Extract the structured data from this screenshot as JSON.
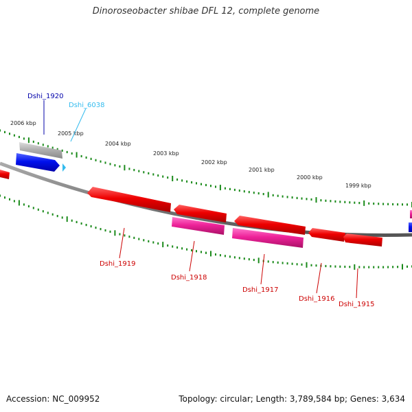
{
  "header": {
    "title": "Dinoroseobacter shibae DFL 12, complete genome"
  },
  "footer": {
    "accession": "Accession: NC_009952",
    "info": "Topology: circular; Length: 3,789,584 bp; Genes: 3,634"
  },
  "scale_labels": [
    "2006 kbp",
    "2005 kbp",
    "2004 kbp",
    "2003 kbp",
    "2002 kbp",
    "2001 kbp",
    "2000 kbp",
    "1999 kbp"
  ],
  "genes": [
    {
      "label": "Dshi_1920",
      "color": "#0000aa"
    },
    {
      "label": "Dshi_6038",
      "color": "#33bbee"
    },
    {
      "label": "Dshi_1919",
      "color": "#cc0000"
    },
    {
      "label": "Dshi_1918",
      "color": "#cc0000"
    },
    {
      "label": "Dshi_1917",
      "color": "#cc0000"
    },
    {
      "label": "Dshi_1916",
      "color": "#cc0000"
    },
    {
      "label": "Dshi_1915",
      "color": "#cc0000"
    }
  ],
  "colors": {
    "backbone": "#808080",
    "tick": "#1a8a1a",
    "gene_red": "#ee0000",
    "gene_magenta": "#ee2299",
    "gene_blue": "#0011ee",
    "gene_grey": "#b0b0b0"
  }
}
